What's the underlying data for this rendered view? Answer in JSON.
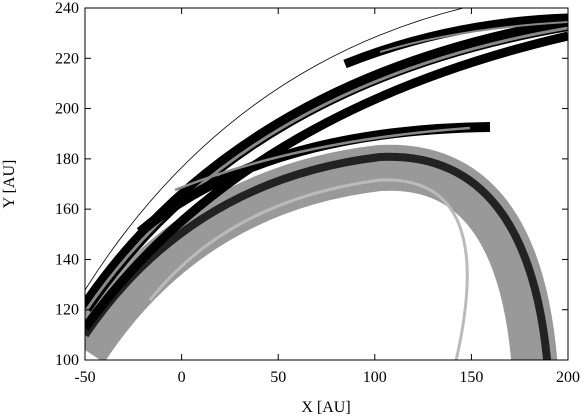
{
  "chart_data": {
    "type": "density",
    "x_label": "X [AU]",
    "y_label": "Y [AU]",
    "xlim": [
      -50,
      200
    ],
    "ylim": [
      100,
      240
    ],
    "xticks": [
      -50,
      0,
      50,
      100,
      150,
      200
    ],
    "yticks": [
      100,
      120,
      140,
      160,
      180,
      200,
      220,
      240
    ]
  }
}
